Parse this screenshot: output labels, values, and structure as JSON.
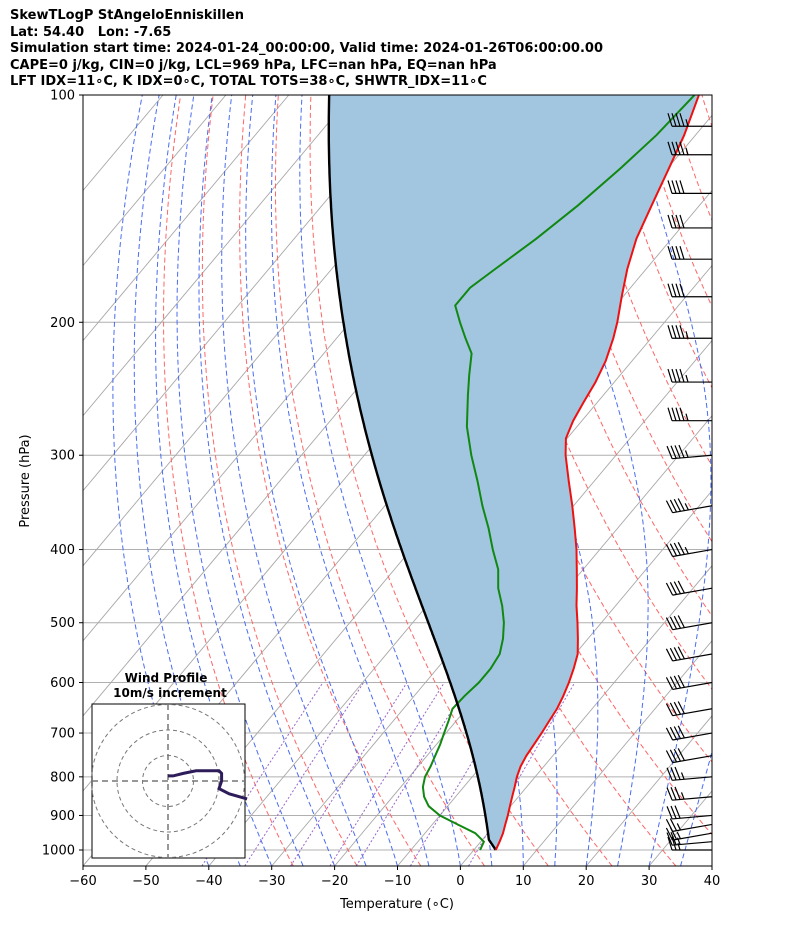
{
  "header": {
    "title": "SkewTLogP StAngeloEnniskillen",
    "location": "Lat: 54.40   Lon: -7.65",
    "times": "Simulation start time: 2024-01-24_00:00:00, Valid time: 2024-01-26T06:00:00.00",
    "params": "CAPE=0 j/kg, CIN=0 j/kg, LCL=969 hPa, LFC=nan hPa, EQ=nan hPa",
    "indices": "LFT IDX=11∘C, K IDX=0∘C, TOTAL TOTS=38∘C, SHWTR_IDX=11∘C"
  },
  "colors": {
    "temperature": "#ee1111",
    "dewpoint": "#118811",
    "parcel": "#000000",
    "shading": "#a2c6e0",
    "dry_adiabats": "#ff6666",
    "moist_adiabats": "#4a6cf2",
    "mixing_ratio": "#9966cc",
    "isotherms": "#999999",
    "hodograph": "#2e1c5a"
  },
  "chart_data": {
    "type": "skewt",
    "xlabel": "Temperature (∘C)",
    "ylabel": "Pressure (hPa)",
    "xlim": [
      -60,
      40
    ],
    "ylim": [
      1050,
      100
    ],
    "x_ticks": [
      "−60",
      "−50",
      "−40",
      "−30",
      "−20",
      "−10",
      "0",
      "10",
      "20",
      "30",
      "40"
    ],
    "y_ticks": [
      "100",
      "200",
      "300",
      "400",
      "500",
      "600",
      "700",
      "800",
      "900",
      "1000"
    ],
    "y_scale": "log",
    "grid": true,
    "temperature_profile": [
      [
        1000,
        3.5
      ],
      [
        975,
        3.0
      ],
      [
        950,
        2.4
      ],
      [
        925,
        1.6
      ],
      [
        900,
        0.8
      ],
      [
        875,
        -0.1
      ],
      [
        850,
        -1.0
      ],
      [
        825,
        -1.9
      ],
      [
        800,
        -2.9
      ],
      [
        775,
        -3.7
      ],
      [
        750,
        -4.2
      ],
      [
        725,
        -4.5
      ],
      [
        700,
        -4.8
      ],
      [
        675,
        -5.2
      ],
      [
        650,
        -5.6
      ],
      [
        625,
        -6.3
      ],
      [
        600,
        -7.2
      ],
      [
        575,
        -8.3
      ],
      [
        550,
        -9.6
      ],
      [
        525,
        -11.6
      ],
      [
        500,
        -13.8
      ],
      [
        475,
        -16.2
      ],
      [
        450,
        -18.5
      ],
      [
        425,
        -21.0
      ],
      [
        400,
        -23.7
      ],
      [
        375,
        -26.8
      ],
      [
        350,
        -30.2
      ],
      [
        325,
        -34.0
      ],
      [
        300,
        -38.0
      ],
      [
        285,
        -40.2
      ],
      [
        270,
        -41.4
      ],
      [
        255,
        -42.2
      ],
      [
        240,
        -43.0
      ],
      [
        225,
        -44.2
      ],
      [
        210,
        -46.0
      ],
      [
        200,
        -47.5
      ],
      [
        185,
        -50.2
      ],
      [
        170,
        -53.0
      ],
      [
        155,
        -55.6
      ],
      [
        140,
        -57.6
      ],
      [
        125,
        -59.8
      ],
      [
        113,
        -61.8
      ],
      [
        100,
        -64.8
      ]
    ],
    "dewpoint_profile": [
      [
        1000,
        1.0
      ],
      [
        975,
        0.5
      ],
      [
        950,
        -2.0
      ],
      [
        925,
        -6.0
      ],
      [
        900,
        -10.0
      ],
      [
        875,
        -13.0
      ],
      [
        850,
        -15.0
      ],
      [
        825,
        -16.5
      ],
      [
        800,
        -17.5
      ],
      [
        775,
        -18.0
      ],
      [
        750,
        -18.7
      ],
      [
        725,
        -19.4
      ],
      [
        700,
        -20.3
      ],
      [
        675,
        -21.2
      ],
      [
        650,
        -22.2
      ],
      [
        625,
        -22.0
      ],
      [
        600,
        -21.5
      ],
      [
        575,
        -21.5
      ],
      [
        550,
        -22.0
      ],
      [
        525,
        -23.5
      ],
      [
        500,
        -25.5
      ],
      [
        475,
        -28.0
      ],
      [
        450,
        -31.0
      ],
      [
        425,
        -33.5
      ],
      [
        400,
        -37.0
      ],
      [
        375,
        -40.5
      ],
      [
        350,
        -44.5
      ],
      [
        325,
        -48.5
      ],
      [
        300,
        -53.0
      ],
      [
        275,
        -57.5
      ],
      [
        250,
        -61.5
      ],
      [
        235,
        -64.0
      ],
      [
        220,
        -66.5
      ],
      [
        210,
        -69.5
      ],
      [
        200,
        -72.5
      ],
      [
        190,
        -75.5
      ],
      [
        180,
        -75.5
      ],
      [
        170,
        -74.0
      ],
      [
        155,
        -71.5
      ],
      [
        140,
        -69.3
      ],
      [
        125,
        -67.5
      ],
      [
        113,
        -66.2
      ],
      [
        100,
        -65.5
      ]
    ],
    "parcel_profile_surface": {
      "pressure_hPa": 1000,
      "temperature_C": 3.5
    },
    "wind_barbs": [
      [
        1000,
        270,
        25
      ],
      [
        975,
        265,
        25
      ],
      [
        950,
        260,
        25
      ],
      [
        925,
        260,
        25
      ],
      [
        900,
        265,
        30
      ],
      [
        850,
        265,
        35
      ],
      [
        800,
        265,
        35
      ],
      [
        750,
        260,
        40
      ],
      [
        700,
        260,
        40
      ],
      [
        650,
        260,
        40
      ],
      [
        600,
        260,
        40
      ],
      [
        550,
        260,
        40
      ],
      [
        500,
        260,
        40
      ],
      [
        450,
        260,
        40
      ],
      [
        400,
        260,
        45
      ],
      [
        350,
        260,
        45
      ],
      [
        300,
        265,
        45
      ],
      [
        270,
        270,
        45
      ],
      [
        240,
        270,
        45
      ],
      [
        210,
        270,
        45
      ],
      [
        185,
        270,
        40
      ],
      [
        165,
        270,
        40
      ],
      [
        150,
        270,
        40
      ],
      [
        135,
        270,
        40
      ],
      [
        120,
        270,
        45
      ],
      [
        110,
        270,
        45
      ]
    ],
    "hodograph": {
      "title": "Wind Profile",
      "subtitle": "10m/s increment",
      "rings_ms": [
        10,
        20,
        30
      ],
      "u_ms": [
        31,
        24,
        20,
        21,
        21,
        20,
        17,
        11,
        6,
        2,
        0
      ],
      "v_ms": [
        -7,
        -5,
        -3,
        0,
        3,
        4,
        4,
        4,
        3,
        2,
        2
      ]
    }
  }
}
